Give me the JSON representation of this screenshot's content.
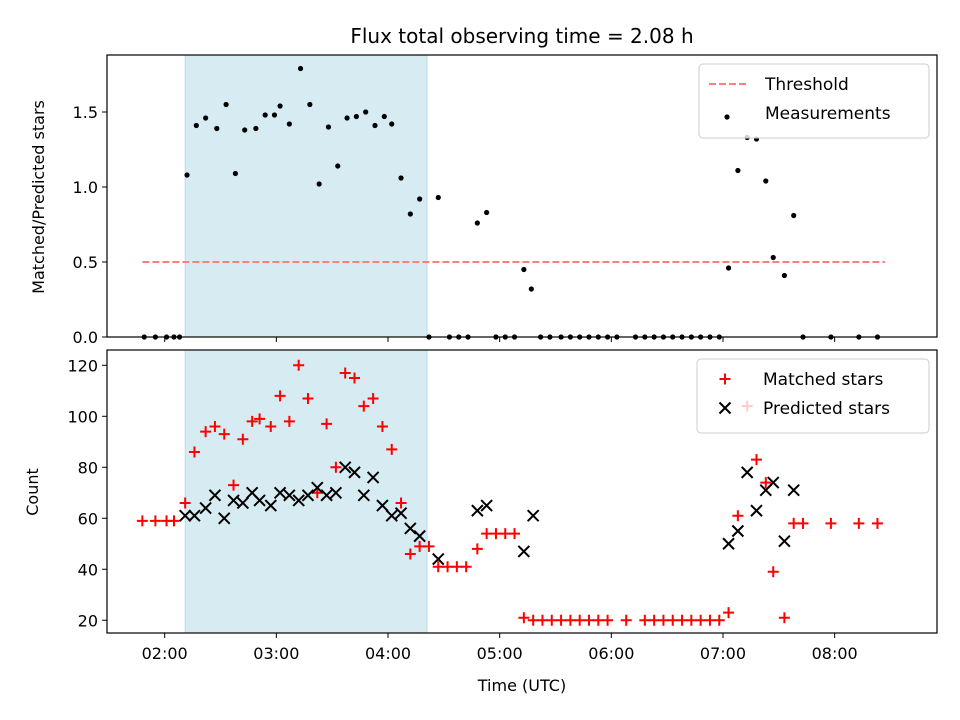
{
  "chart_data": [
    {
      "type": "scatter",
      "title": "Flux total observing time = 2.08 h",
      "xlabel": "",
      "ylabel": "Matched/Predicted stars",
      "xlim": [
        "01:29",
        "08:55"
      ],
      "ylim": [
        0,
        1.88
      ],
      "yticks": [
        0.0,
        0.5,
        1.0,
        1.5
      ],
      "ytick_labels": [
        "0.0",
        "0.5",
        "1.0",
        "1.5"
      ],
      "shaded_span": [
        "02:11",
        "04:21"
      ],
      "shaded_color": "#add8e6",
      "grid": false,
      "legend_position": "upper right",
      "threshold": {
        "name": "Threshold",
        "y": 0.5,
        "x_start": "01:48",
        "x_end": "08:27",
        "color": "#ff7f7f",
        "style": "dashed"
      },
      "series": [
        {
          "name": "Measurements",
          "marker": "dot",
          "color": "#000000",
          "points": [
            [
              "01:49",
              0.0
            ],
            [
              "01:55",
              0.0
            ],
            [
              "02:01",
              0.0
            ],
            [
              "02:05",
              0.0
            ],
            [
              "02:08",
              0.0
            ],
            [
              "02:12",
              1.08
            ],
            [
              "02:17",
              1.41
            ],
            [
              "02:22",
              1.46
            ],
            [
              "02:28",
              1.39
            ],
            [
              "02:33",
              1.55
            ],
            [
              "02:38",
              1.09
            ],
            [
              "02:43",
              1.38
            ],
            [
              "02:49",
              1.39
            ],
            [
              "02:54",
              1.48
            ],
            [
              "02:59",
              1.48
            ],
            [
              "03:02",
              1.54
            ],
            [
              "03:07",
              1.42
            ],
            [
              "03:13",
              1.79
            ],
            [
              "03:18",
              1.55
            ],
            [
              "03:23",
              1.02
            ],
            [
              "03:28",
              1.4
            ],
            [
              "03:33",
              1.14
            ],
            [
              "03:38",
              1.46
            ],
            [
              "03:43",
              1.47
            ],
            [
              "03:48",
              1.5
            ],
            [
              "03:53",
              1.41
            ],
            [
              "03:58",
              1.47
            ],
            [
              "04:02",
              1.42
            ],
            [
              "04:07",
              1.06
            ],
            [
              "04:12",
              0.82
            ],
            [
              "04:17",
              0.92
            ],
            [
              "04:22",
              0.0
            ],
            [
              "04:27",
              0.93
            ],
            [
              "04:33",
              0.0
            ],
            [
              "04:38",
              0.0
            ],
            [
              "04:43",
              0.0
            ],
            [
              "04:48",
              0.76
            ],
            [
              "04:53",
              0.83
            ],
            [
              "04:58",
              0.0
            ],
            [
              "05:03",
              0.0
            ],
            [
              "05:08",
              0.0
            ],
            [
              "05:13",
              0.45
            ],
            [
              "05:17",
              0.32
            ],
            [
              "05:22",
              0.0
            ],
            [
              "05:27",
              0.0
            ],
            [
              "05:33",
              0.0
            ],
            [
              "05:38",
              0.0
            ],
            [
              "05:43",
              0.0
            ],
            [
              "05:48",
              0.0
            ],
            [
              "05:53",
              0.0
            ],
            [
              "05:58",
              0.0
            ],
            [
              "06:03",
              0.0
            ],
            [
              "06:13",
              0.0
            ],
            [
              "06:18",
              0.0
            ],
            [
              "06:23",
              0.0
            ],
            [
              "06:28",
              0.0
            ],
            [
              "06:33",
              0.0
            ],
            [
              "06:38",
              0.0
            ],
            [
              "06:43",
              0.0
            ],
            [
              "06:48",
              0.0
            ],
            [
              "06:53",
              0.0
            ],
            [
              "06:58",
              0.0
            ],
            [
              "07:03",
              0.46
            ],
            [
              "07:08",
              1.11
            ],
            [
              "07:13",
              1.33
            ],
            [
              "07:18",
              1.32
            ],
            [
              "07:23",
              1.04
            ],
            [
              "07:27",
              0.53
            ],
            [
              "07:33",
              0.41
            ],
            [
              "07:38",
              0.81
            ],
            [
              "07:43",
              0.0
            ],
            [
              "07:58",
              0.0
            ],
            [
              "08:13",
              0.0
            ],
            [
              "08:23",
              0.0
            ]
          ]
        }
      ]
    },
    {
      "type": "scatter",
      "title": "",
      "xlabel": "Time (UTC)",
      "ylabel": "Count",
      "xlim": [
        "01:29",
        "08:55"
      ],
      "ylim": [
        15,
        126
      ],
      "yticks": [
        20,
        40,
        60,
        80,
        100,
        120
      ],
      "ytick_labels": [
        "20",
        "40",
        "60",
        "80",
        "100",
        "120"
      ],
      "xticks": [
        "02:00",
        "03:00",
        "04:00",
        "05:00",
        "06:00",
        "07:00",
        "08:00"
      ],
      "shaded_span": [
        "02:11",
        "04:21"
      ],
      "shaded_color": "#add8e6",
      "grid": false,
      "legend_position": "upper right",
      "series": [
        {
          "name": "Matched stars",
          "marker": "plus",
          "color": "#ff0000",
          "points": [
            [
              "01:48",
              59
            ],
            [
              "01:55",
              59
            ],
            [
              "02:01",
              59
            ],
            [
              "02:05",
              59
            ],
            [
              "02:11",
              66
            ],
            [
              "02:16",
              86
            ],
            [
              "02:22",
              94
            ],
            [
              "02:27",
              96
            ],
            [
              "02:32",
              93
            ],
            [
              "02:37",
              73
            ],
            [
              "02:42",
              91
            ],
            [
              "02:47",
              98
            ],
            [
              "02:51",
              99
            ],
            [
              "02:57",
              96
            ],
            [
              "03:02",
              108
            ],
            [
              "03:07",
              98
            ],
            [
              "03:12",
              120
            ],
            [
              "03:17",
              107
            ],
            [
              "03:22",
              70
            ],
            [
              "03:27",
              97
            ],
            [
              "03:32",
              80
            ],
            [
              "03:37",
              117
            ],
            [
              "03:42",
              115
            ],
            [
              "03:47",
              104
            ],
            [
              "03:52",
              107
            ],
            [
              "03:57",
              96
            ],
            [
              "04:02",
              87
            ],
            [
              "04:07",
              66
            ],
            [
              "04:12",
              46
            ],
            [
              "04:17",
              49
            ],
            [
              "04:22",
              49
            ],
            [
              "04:27",
              41
            ],
            [
              "04:32",
              41
            ],
            [
              "04:37",
              41
            ],
            [
              "04:42",
              41
            ],
            [
              "04:48",
              48
            ],
            [
              "04:53",
              54
            ],
            [
              "04:58",
              54
            ],
            [
              "05:03",
              54
            ],
            [
              "05:08",
              54
            ],
            [
              "05:13",
              21
            ],
            [
              "05:18",
              20
            ],
            [
              "05:23",
              20
            ],
            [
              "05:28",
              20
            ],
            [
              "05:33",
              20
            ],
            [
              "05:38",
              20
            ],
            [
              "05:43",
              20
            ],
            [
              "05:48",
              20
            ],
            [
              "05:53",
              20
            ],
            [
              "05:58",
              20
            ],
            [
              "06:08",
              20
            ],
            [
              "06:18",
              20
            ],
            [
              "06:23",
              20
            ],
            [
              "06:28",
              20
            ],
            [
              "06:33",
              20
            ],
            [
              "06:38",
              20
            ],
            [
              "06:43",
              20
            ],
            [
              "06:48",
              20
            ],
            [
              "06:53",
              20
            ],
            [
              "06:58",
              20
            ],
            [
              "07:03",
              23
            ],
            [
              "07:08",
              61
            ],
            [
              "07:13",
              104
            ],
            [
              "07:18",
              83
            ],
            [
              "07:23",
              74
            ],
            [
              "07:27",
              39
            ],
            [
              "07:33",
              21
            ],
            [
              "07:38",
              58
            ],
            [
              "07:43",
              58
            ],
            [
              "07:58",
              58
            ],
            [
              "08:13",
              58
            ],
            [
              "08:23",
              58
            ]
          ]
        },
        {
          "name": "Predicted stars",
          "marker": "x",
          "color": "#000000",
          "points": [
            [
              "02:11",
              61
            ],
            [
              "02:16",
              61
            ],
            [
              "02:22",
              64
            ],
            [
              "02:27",
              69
            ],
            [
              "02:32",
              60
            ],
            [
              "02:37",
              67
            ],
            [
              "02:42",
              66
            ],
            [
              "02:47",
              70
            ],
            [
              "02:51",
              67
            ],
            [
              "02:57",
              65
            ],
            [
              "03:02",
              70
            ],
            [
              "03:07",
              69
            ],
            [
              "03:12",
              67
            ],
            [
              "03:17",
              69
            ],
            [
              "03:22",
              72
            ],
            [
              "03:27",
              69
            ],
            [
              "03:32",
              70
            ],
            [
              "03:37",
              80
            ],
            [
              "03:42",
              78
            ],
            [
              "03:47",
              69
            ],
            [
              "03:52",
              76
            ],
            [
              "03:57",
              65
            ],
            [
              "04:02",
              61
            ],
            [
              "04:07",
              62
            ],
            [
              "04:12",
              56
            ],
            [
              "04:17",
              53
            ],
            [
              "04:27",
              44
            ],
            [
              "04:48",
              63
            ],
            [
              "04:53",
              65
            ],
            [
              "05:13",
              47
            ],
            [
              "05:18",
              61
            ],
            [
              "07:03",
              50
            ],
            [
              "07:08",
              55
            ],
            [
              "07:13",
              78
            ],
            [
              "07:18",
              63
            ],
            [
              "07:23",
              71
            ],
            [
              "07:27",
              74
            ],
            [
              "07:33",
              51
            ],
            [
              "07:38",
              71
            ]
          ]
        }
      ]
    }
  ]
}
